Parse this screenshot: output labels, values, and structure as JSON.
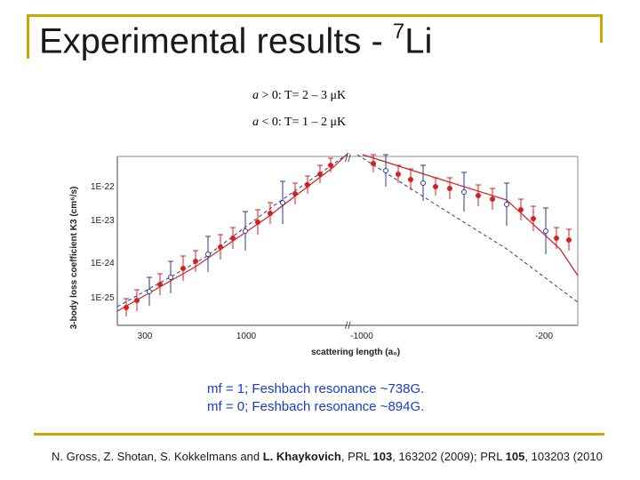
{
  "slide": {
    "title": "Experimental results - ",
    "title_sup": "7",
    "title_element": "Li",
    "cond_pos_var": "a",
    "cond_pos_text": " > 0: T= 2 – 3 μK",
    "cond_neg_var": "a",
    "cond_neg_text": " < 0: T= 1 – 2 μK",
    "caption_line1": "mf = 1; Feshbach resonance ~738G.",
    "caption_line2": "mf = 0; Feshbach resonance ~894G.",
    "citation_prefix": "N. Gross, Z. Shotan, S. Kokkelmans and ",
    "citation_author": "L. Khaykovich",
    "citation_mid1": ", PRL ",
    "citation_vol1": "103",
    "citation_mid2": ", 163202 (2009); PRL ",
    "citation_vol2": "105",
    "citation_suffix": ", 103203 (2010"
  },
  "chart_data": {
    "type": "scatter",
    "ylabel": "3-body loss coefficient K3 (cm⁶/s)",
    "xlabel": "scattering length (a₀)",
    "x_ticks": [
      "300",
      "1000",
      "-1000",
      "-200"
    ],
    "y_ticks": [
      "1E-22",
      "1E-23",
      "1E-24",
      "1E-25"
    ],
    "y_scale": "log",
    "series": [
      {
        "color": "#d42020",
        "marker": "filled-circle",
        "fit": "solid"
      },
      {
        "color": "#2a3a9a",
        "marker": "open-circle",
        "fit": "dashed"
      }
    ]
  }
}
